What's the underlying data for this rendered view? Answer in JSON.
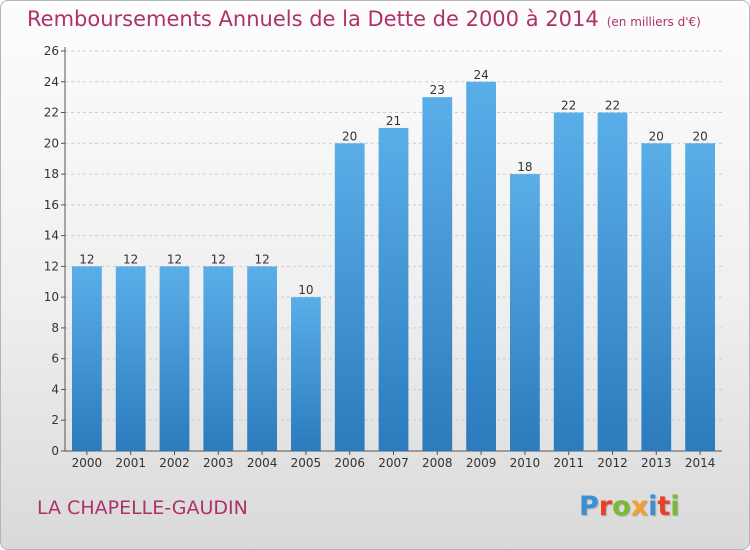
{
  "header": {
    "title": "Remboursements Annuels de la Dette de 2000 à 2014",
    "subtitle": "(en milliers d'€)"
  },
  "footer": {
    "commune": "LA CHAPELLE-GAUDIN",
    "logo_text": "Proxiti",
    "logo_colors": [
      "#3b8fd6",
      "#e8402a",
      "#7ab934",
      "#f2a12e",
      "#3b8fd6",
      "#e8402a",
      "#7ab934"
    ]
  },
  "colors": {
    "bar_top": "#5aaee8",
    "bar_bottom": "#2b7bbd",
    "title": "#b0306a",
    "grid": "#cccccc",
    "axis_text": "#333333"
  },
  "chart_data": {
    "type": "bar",
    "categories": [
      "2000",
      "2001",
      "2002",
      "2003",
      "2004",
      "2005",
      "2006",
      "2007",
      "2008",
      "2009",
      "2010",
      "2011",
      "2012",
      "2013",
      "2014"
    ],
    "values": [
      12,
      12,
      12,
      12,
      12,
      10,
      20,
      21,
      23,
      24,
      18,
      22,
      22,
      20,
      20
    ],
    "data_labels": [
      "12",
      "12",
      "12",
      "12",
      "12",
      "10",
      "20",
      "21",
      "23",
      "24",
      "18",
      "22",
      "22",
      "20",
      "20"
    ],
    "yticks": [
      "0",
      "2",
      "4",
      "6",
      "8",
      "10",
      "12",
      "14",
      "16",
      "18",
      "20",
      "22",
      "24",
      "26"
    ],
    "ylim": [
      0,
      26
    ],
    "grid": true,
    "legend": "none"
  }
}
